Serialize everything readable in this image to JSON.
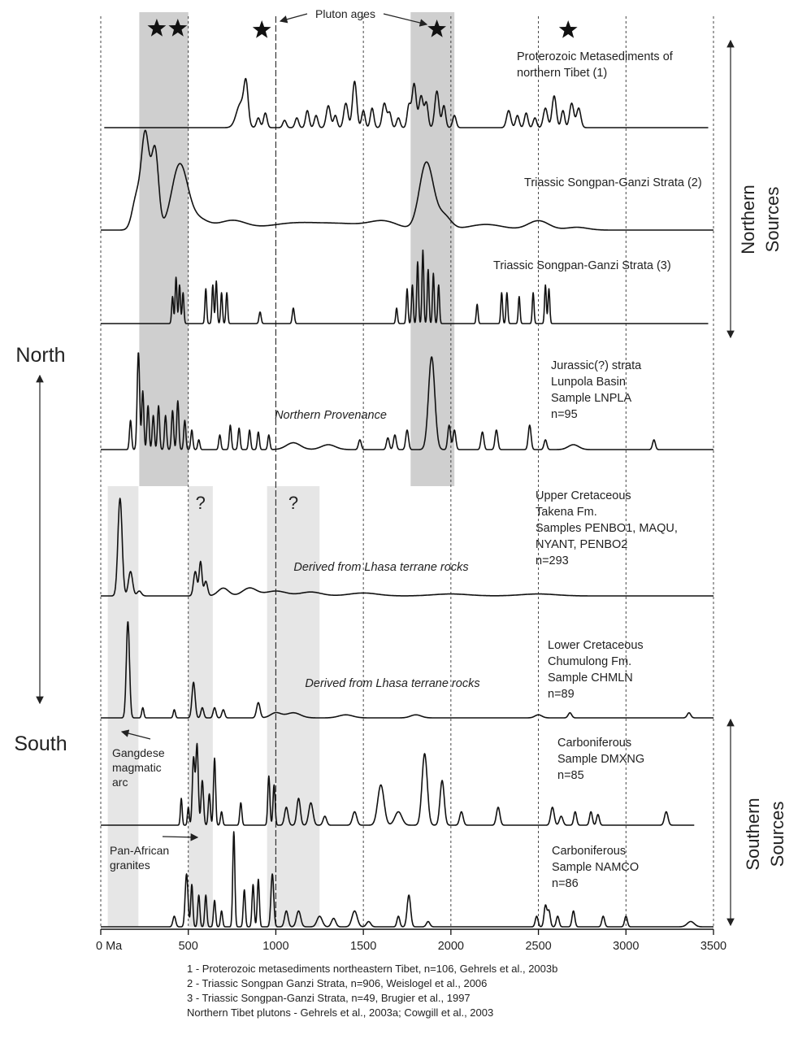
{
  "chart_data": {
    "type": "line",
    "x_unit_first_tick": "0 Ma",
    "xlim": [
      0,
      3500
    ],
    "x_ticks": [
      0,
      500,
      1000,
      1500,
      2000,
      2500,
      3000,
      3500
    ],
    "x_tick_labels": [
      "0 Ma",
      "500",
      "1000",
      "1500",
      "2000",
      "2500",
      "3000",
      "3500"
    ],
    "dashed_reference_lines": [
      0,
      500,
      1000,
      1500,
      2000,
      2500,
      3000,
      3500
    ],
    "pluton_ages_label": "Pluton ages",
    "pluton_ages": [
      320,
      440,
      920,
      1920,
      2670
    ],
    "shaded_bands": [
      {
        "from": 220,
        "to": 500,
        "range": "north",
        "color": "#cfcfcf"
      },
      {
        "from": 1770,
        "to": 2020,
        "range": "north",
        "color": "#cfcfcf"
      },
      {
        "from": 40,
        "to": 215,
        "range": "south",
        "color": "#e6e6e6"
      },
      {
        "from": 500,
        "to": 640,
        "range": "south",
        "color": "#e6e6e6",
        "mark": "?"
      },
      {
        "from": 950,
        "to": 1250,
        "range": "south",
        "color": "#e6e6e6",
        "mark": "?"
      }
    ],
    "series": [
      {
        "name": "Proterozoic Metasediments of northern Tibet (1)",
        "label_lines": [
          "Proterozoic Metasediments of",
          "northern Tibet (1)"
        ],
        "range": [
          20,
          3470
        ],
        "peak_h": 60,
        "peaks": [
          [
            800,
            0.5,
            25
          ],
          [
            830,
            0.75,
            12
          ],
          [
            900,
            0.2,
            10
          ],
          [
            940,
            0.3,
            10
          ],
          [
            1050,
            0.15,
            10
          ],
          [
            1120,
            0.2,
            10
          ],
          [
            1180,
            0.35,
            10
          ],
          [
            1230,
            0.25,
            10
          ],
          [
            1300,
            0.45,
            12
          ],
          [
            1340,
            0.25,
            10
          ],
          [
            1400,
            0.5,
            12
          ],
          [
            1450,
            0.95,
            12
          ],
          [
            1500,
            0.35,
            10
          ],
          [
            1550,
            0.4,
            10
          ],
          [
            1620,
            0.5,
            12
          ],
          [
            1650,
            0.3,
            10
          ],
          [
            1700,
            0.2,
            10
          ],
          [
            1760,
            0.45,
            10
          ],
          [
            1790,
            0.9,
            12
          ],
          [
            1830,
            0.65,
            12
          ],
          [
            1860,
            0.5,
            10
          ],
          [
            1920,
            0.75,
            12
          ],
          [
            1960,
            0.45,
            10
          ],
          [
            2020,
            0.25,
            10
          ],
          [
            2330,
            0.35,
            12
          ],
          [
            2380,
            0.25,
            10
          ],
          [
            2430,
            0.3,
            10
          ],
          [
            2480,
            0.2,
            10
          ],
          [
            2540,
            0.4,
            12
          ],
          [
            2590,
            0.65,
            12
          ],
          [
            2640,
            0.35,
            10
          ],
          [
            2690,
            0.5,
            12
          ],
          [
            2730,
            0.4,
            12
          ]
        ]
      },
      {
        "name": "Triassic Songpan-Ganzi Strata (2)",
        "label_lines": [
          "Triassic Songpan-Ganzi Strata (2)"
        ],
        "range": [
          0,
          3500
        ],
        "peak_h": 115,
        "peaks": [
          [
            255,
            1.0,
            22
          ],
          [
            310,
            0.85,
            20
          ],
          [
            205,
            0.35,
            25
          ],
          [
            450,
            0.68,
            45
          ],
          [
            550,
            0.12,
            60
          ],
          [
            750,
            0.1,
            80
          ],
          [
            1100,
            0.07,
            150
          ],
          [
            1400,
            0.06,
            150
          ],
          [
            1620,
            0.08,
            80
          ],
          [
            1860,
            0.72,
            40
          ],
          [
            1960,
            0.15,
            40
          ],
          [
            2200,
            0.06,
            100
          ],
          [
            2500,
            0.1,
            60
          ],
          [
            2720,
            0.03,
            60
          ]
        ]
      },
      {
        "name": "Triassic Songpan-Ganzi Strata (3)",
        "label_lines": [
          "Triassic Songpan-Ganzi Strata (3)"
        ],
        "range": [
          0,
          3470
        ],
        "peak_h": 95,
        "peaks": [
          [
            410,
            0.35,
            5
          ],
          [
            430,
            0.6,
            5
          ],
          [
            450,
            0.5,
            5
          ],
          [
            470,
            0.4,
            5
          ],
          [
            600,
            0.45,
            5
          ],
          [
            640,
            0.5,
            5
          ],
          [
            660,
            0.55,
            5
          ],
          [
            690,
            0.4,
            5
          ],
          [
            720,
            0.4,
            5
          ],
          [
            910,
            0.15,
            6
          ],
          [
            1100,
            0.2,
            6
          ],
          [
            1690,
            0.2,
            5
          ],
          [
            1750,
            0.45,
            5
          ],
          [
            1780,
            0.5,
            5
          ],
          [
            1810,
            0.8,
            5
          ],
          [
            1840,
            0.95,
            5
          ],
          [
            1870,
            0.7,
            5
          ],
          [
            1900,
            0.65,
            5
          ],
          [
            1930,
            0.5,
            5
          ],
          [
            2150,
            0.25,
            5
          ],
          [
            2290,
            0.4,
            5
          ],
          [
            2320,
            0.4,
            5
          ],
          [
            2390,
            0.35,
            5
          ],
          [
            2470,
            0.4,
            5
          ],
          [
            2540,
            0.5,
            5
          ],
          [
            2560,
            0.45,
            5
          ]
        ]
      },
      {
        "name": "Jurassic(?) strata Lunpola Basin Sample LNPLA n=95",
        "label_lines": [
          "Jurassic(?) strata",
          "Lunpola Basin",
          "Sample LNPLA",
          "n=95"
        ],
        "annotation": "Northern Provenance",
        "range": [
          0,
          3500
        ],
        "peak_h": 120,
        "peaks": [
          [
            170,
            0.3,
            6
          ],
          [
            215,
            1.0,
            7
          ],
          [
            240,
            0.6,
            6
          ],
          [
            270,
            0.45,
            6
          ],
          [
            300,
            0.35,
            6
          ],
          [
            330,
            0.45,
            6
          ],
          [
            370,
            0.35,
            6
          ],
          [
            410,
            0.4,
            6
          ],
          [
            440,
            0.5,
            6
          ],
          [
            480,
            0.3,
            6
          ],
          [
            520,
            0.2,
            6
          ],
          [
            560,
            0.1,
            6
          ],
          [
            680,
            0.15,
            6
          ],
          [
            740,
            0.25,
            6
          ],
          [
            790,
            0.22,
            6
          ],
          [
            850,
            0.2,
            6
          ],
          [
            900,
            0.18,
            6
          ],
          [
            960,
            0.15,
            6
          ],
          [
            1100,
            0.07,
            40
          ],
          [
            1300,
            0.05,
            40
          ],
          [
            1480,
            0.1,
            8
          ],
          [
            1640,
            0.12,
            8
          ],
          [
            1680,
            0.15,
            8
          ],
          [
            1750,
            0.2,
            8
          ],
          [
            1890,
            0.95,
            18
          ],
          [
            1990,
            0.25,
            8
          ],
          [
            2020,
            0.2,
            8
          ],
          [
            2180,
            0.18,
            8
          ],
          [
            2260,
            0.2,
            8
          ],
          [
            2450,
            0.25,
            8
          ],
          [
            2540,
            0.1,
            8
          ],
          [
            2700,
            0.05,
            30
          ],
          [
            3160,
            0.1,
            8
          ]
        ]
      },
      {
        "name": "Upper Cretaceous Takena Fm. Samples PENBO1, MAQU, NYANT, PENBO2 n=293",
        "label_lines": [
          "Upper Cretaceous",
          "Takena Fm.",
          "Samples PENBO1, MAQU,",
          "NYANT, PENBO2",
          "n=293"
        ],
        "annotation": "Derived from Lhasa terrane rocks",
        "range": [
          0,
          3500
        ],
        "peak_h": 120,
        "peaks": [
          [
            110,
            1.0,
            12
          ],
          [
            170,
            0.25,
            12
          ],
          [
            220,
            0.05,
            12
          ],
          [
            540,
            0.25,
            10
          ],
          [
            570,
            0.35,
            8
          ],
          [
            600,
            0.15,
            10
          ],
          [
            700,
            0.08,
            30
          ],
          [
            850,
            0.08,
            40
          ],
          [
            1000,
            0.05,
            60
          ],
          [
            1200,
            0.04,
            60
          ],
          [
            1500,
            0.03,
            80
          ],
          [
            2000,
            0.02,
            100
          ],
          [
            2500,
            0.02,
            100
          ]
        ]
      },
      {
        "name": "Lower Cretaceous Chumulong Fm. Sample CHMLN n=89",
        "label_lines": [
          "Lower Cretaceous",
          "Chumulong Fm.",
          "Sample CHMLN",
          "n=89"
        ],
        "annotation": "Derived from Lhasa terrane rocks",
        "range": [
          0,
          3500
        ],
        "peak_h": 125,
        "peaks": [
          [
            155,
            0.95,
            9
          ],
          [
            240,
            0.1,
            6
          ],
          [
            420,
            0.08,
            6
          ],
          [
            530,
            0.35,
            9
          ],
          [
            580,
            0.1,
            8
          ],
          [
            650,
            0.1,
            8
          ],
          [
            700,
            0.08,
            8
          ],
          [
            900,
            0.15,
            10
          ],
          [
            1000,
            0.05,
            30
          ],
          [
            1100,
            0.05,
            40
          ],
          [
            1400,
            0.03,
            40
          ],
          [
            1800,
            0.03,
            30
          ],
          [
            2500,
            0.03,
            20
          ],
          [
            2680,
            0.05,
            10
          ],
          [
            3360,
            0.05,
            10
          ]
        ]
      },
      {
        "name": "Carboniferous Sample DMXNG n=85",
        "label_lines": [
          "Carboniferous",
          "Sample DMXNG",
          "n=85"
        ],
        "range": [
          0,
          3390
        ],
        "peak_h": 110,
        "peaks": [
          [
            460,
            0.3,
            5
          ],
          [
            500,
            0.2,
            5
          ],
          [
            530,
            0.75,
            7
          ],
          [
            550,
            0.9,
            7
          ],
          [
            580,
            0.5,
            7
          ],
          [
            620,
            0.35,
            6
          ],
          [
            650,
            0.75,
            6
          ],
          [
            690,
            0.15,
            6
          ],
          [
            800,
            0.25,
            6
          ],
          [
            960,
            0.55,
            6
          ],
          [
            990,
            0.45,
            6
          ],
          [
            1060,
            0.2,
            10
          ],
          [
            1130,
            0.3,
            10
          ],
          [
            1200,
            0.25,
            12
          ],
          [
            1280,
            0.1,
            10
          ],
          [
            1450,
            0.15,
            12
          ],
          [
            1600,
            0.45,
            18
          ],
          [
            1700,
            0.15,
            20
          ],
          [
            1850,
            0.8,
            15
          ],
          [
            1950,
            0.5,
            12
          ],
          [
            2060,
            0.15,
            10
          ],
          [
            2270,
            0.2,
            10
          ],
          [
            2580,
            0.2,
            10
          ],
          [
            2630,
            0.1,
            10
          ],
          [
            2710,
            0.15,
            8
          ],
          [
            2800,
            0.15,
            8
          ],
          [
            2840,
            0.12,
            8
          ],
          [
            3230,
            0.15,
            10
          ]
        ]
      },
      {
        "name": "Carboniferous Sample NAMCO n=86",
        "label_lines": [
          "Carboniferous",
          "Sample NAMCO",
          "n=86"
        ],
        "range": [
          0,
          3500
        ],
        "peak_h": 130,
        "peaks": [
          [
            420,
            0.1,
            8
          ],
          [
            490,
            0.5,
            8
          ],
          [
            520,
            0.4,
            6
          ],
          [
            560,
            0.3,
            6
          ],
          [
            600,
            0.3,
            6
          ],
          [
            650,
            0.25,
            6
          ],
          [
            690,
            0.15,
            6
          ],
          [
            760,
            0.9,
            6
          ],
          [
            820,
            0.35,
            6
          ],
          [
            870,
            0.4,
            6
          ],
          [
            900,
            0.45,
            6
          ],
          [
            980,
            0.5,
            8
          ],
          [
            1060,
            0.15,
            10
          ],
          [
            1130,
            0.15,
            12
          ],
          [
            1250,
            0.1,
            15
          ],
          [
            1330,
            0.08,
            12
          ],
          [
            1450,
            0.15,
            15
          ],
          [
            1530,
            0.05,
            12
          ],
          [
            1700,
            0.1,
            8
          ],
          [
            1760,
            0.3,
            10
          ],
          [
            1870,
            0.05,
            10
          ],
          [
            2490,
            0.1,
            8
          ],
          [
            2540,
            0.2,
            8
          ],
          [
            2560,
            0.15,
            8
          ],
          [
            2610,
            0.1,
            8
          ],
          [
            2700,
            0.15,
            8
          ],
          [
            2870,
            0.1,
            8
          ],
          [
            3000,
            0.1,
            8
          ],
          [
            3370,
            0.05,
            20
          ]
        ]
      }
    ],
    "north_label": "North",
    "south_label": "South",
    "northern_sources": [
      "Northern",
      "Sources"
    ],
    "southern_sources": [
      "Southern",
      "Sources"
    ],
    "annotations": {
      "gangdese": [
        "Gangdese",
        "magmatic",
        "arc"
      ],
      "pan_african": [
        "Pan-African",
        "granites"
      ]
    },
    "footnotes": [
      "1 - Proterozoic metasediments northeastern Tibet, n=106, Gehrels et al., 2003b",
      "2 - Triassic Songpan Ganzi Strata, n=906, Weislogel et al., 2006",
      "3 - Triassic Songpan-Ganzi Strata, n=49, Brugier et al., 1997",
      "Northern Tibet plutons - Gehrels et al., 2003a; Cowgill et al., 2003"
    ]
  }
}
